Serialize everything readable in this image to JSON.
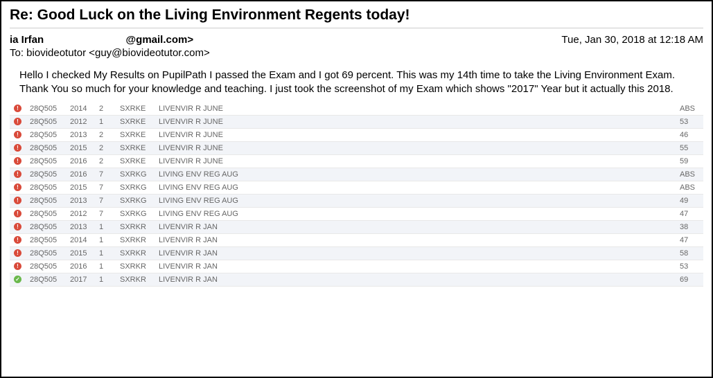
{
  "email": {
    "subject": "Re: Good Luck on the Living Environment Regents today!",
    "from_name": "ia Irfan",
    "from_addr_suffix": "@gmail.com>",
    "to_line": "To: biovideotutor <guy@biovideotutor.com>",
    "date": "Tue, Jan 30, 2018 at 12:18 AM",
    "body_p1": "Hello I checked My Results on PupilPath I passed the Exam and I got 69 percent. This was my 14th time to take the Living Environment Exam.",
    "body_p2": "Thank You so much for your knowledge and teaching. I just took the screenshot of my Exam which shows \"2017\" Year but it actually this 2018."
  },
  "icons": {
    "fail_glyph": "!",
    "fail_bg": "#d94a3a",
    "pass_glyph": "✓",
    "pass_bg": "#6ab84c"
  },
  "table": {
    "row_alt_bg": "#f2f4f8",
    "text_color": "#666666",
    "rows": [
      {
        "status": "fail",
        "code": "28Q505",
        "year": "2014",
        "num": "2",
        "sx": "SXRKE",
        "desc": "LIVENVIR R JUNE",
        "score": "ABS"
      },
      {
        "status": "fail",
        "code": "28Q505",
        "year": "2012",
        "num": "1",
        "sx": "SXRKE",
        "desc": "LIVENVIR R JUNE",
        "score": "53"
      },
      {
        "status": "fail",
        "code": "28Q505",
        "year": "2013",
        "num": "2",
        "sx": "SXRKE",
        "desc": "LIVENVIR R JUNE",
        "score": "46"
      },
      {
        "status": "fail",
        "code": "28Q505",
        "year": "2015",
        "num": "2",
        "sx": "SXRKE",
        "desc": "LIVENVIR R JUNE",
        "score": "55"
      },
      {
        "status": "fail",
        "code": "28Q505",
        "year": "2016",
        "num": "2",
        "sx": "SXRKE",
        "desc": "LIVENVIR R JUNE",
        "score": "59"
      },
      {
        "status": "fail",
        "code": "28Q505",
        "year": "2016",
        "num": "7",
        "sx": "SXRKG",
        "desc": "LIVING ENV REG AUG",
        "score": "ABS"
      },
      {
        "status": "fail",
        "code": "28Q505",
        "year": "2015",
        "num": "7",
        "sx": "SXRKG",
        "desc": "LIVING ENV REG AUG",
        "score": "ABS"
      },
      {
        "status": "fail",
        "code": "28Q505",
        "year": "2013",
        "num": "7",
        "sx": "SXRKG",
        "desc": "LIVING ENV REG AUG",
        "score": "49"
      },
      {
        "status": "fail",
        "code": "28Q505",
        "year": "2012",
        "num": "7",
        "sx": "SXRKG",
        "desc": "LIVING ENV REG AUG",
        "score": "47"
      },
      {
        "status": "fail",
        "code": "28Q505",
        "year": "2013",
        "num": "1",
        "sx": "SXRKR",
        "desc": "LIVENVIR R JAN",
        "score": "38"
      },
      {
        "status": "fail",
        "code": "28Q505",
        "year": "2014",
        "num": "1",
        "sx": "SXRKR",
        "desc": "LIVENVIR R JAN",
        "score": "47"
      },
      {
        "status": "fail",
        "code": "28Q505",
        "year": "2015",
        "num": "1",
        "sx": "SXRKR",
        "desc": "LIVENVIR R JAN",
        "score": "58"
      },
      {
        "status": "fail",
        "code": "28Q505",
        "year": "2016",
        "num": "1",
        "sx": "SXRKR",
        "desc": "LIVENVIR R JAN",
        "score": "53"
      },
      {
        "status": "pass",
        "code": "28Q505",
        "year": "2017",
        "num": "1",
        "sx": "SXRKR",
        "desc": "LIVENVIR R JAN",
        "score": "69"
      }
    ]
  }
}
